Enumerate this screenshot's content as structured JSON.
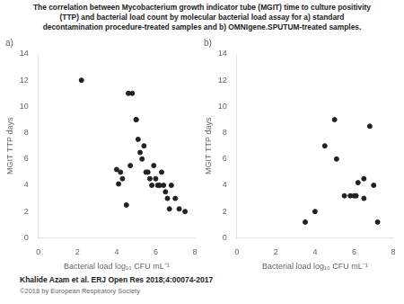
{
  "title": [
    "The correlation between Mycobacterium growth indicator tube (MGIT) time to culture positivity",
    "(TTP) and bacterial load count by molecular bacterial load assay for a) standard",
    "decontamination procedure-treated samples and b) OMNIgene.SPUTUM-treated samples."
  ],
  "annotations": [
    "Khalide Azam et al. ERJ Open Res 2018;4:00074-2017",
    "©2018 by European Respiratory Society"
  ],
  "chart_data": [
    {
      "type": "scatter",
      "title": "a)",
      "xlabel": "Bacterial load log₁₀ CFU mL⁻¹",
      "ylabel": "MGIT TTP days",
      "x": [
        2.2,
        4.0,
        4.1,
        4.2,
        4.3,
        4.5,
        4.6,
        4.7,
        4.8,
        5.0,
        5.0,
        5.1,
        5.2,
        5.3,
        5.4,
        5.5,
        5.6,
        5.7,
        5.8,
        5.9,
        6.0,
        6.1,
        6.2,
        6.3,
        6.4,
        6.5,
        6.6,
        6.7,
        6.8,
        7.0,
        7.2,
        7.5
      ],
      "values": [
        12.0,
        5.2,
        4.1,
        5.0,
        4.5,
        2.5,
        11.0,
        5.5,
        11.0,
        9.0,
        9.0,
        7.5,
        6.5,
        6.0,
        7.0,
        5.0,
        5.0,
        4.5,
        4.0,
        5.5,
        4.5,
        4.0,
        4.0,
        5.0,
        4.0,
        3.5,
        3.0,
        2.2,
        4.0,
        3.0,
        2.2,
        2.0
      ],
      "color": "#222222",
      "marker": "circle",
      "xlim": [
        0,
        8
      ],
      "ylim": [
        0,
        14
      ],
      "xticks": [
        0,
        2,
        4,
        6,
        8
      ],
      "yticks": [
        0,
        2,
        4,
        6,
        8,
        10,
        12,
        14
      ],
      "grid": false
    },
    {
      "type": "scatter",
      "title": "b)",
      "xlabel": "Bacterial load log₁₀ CFU mL⁻¹",
      "ylabel": "MGIT TTP days",
      "x": [
        3.5,
        4.0,
        4.5,
        5.0,
        5.1,
        5.5,
        5.8,
        6.0,
        6.1,
        6.2,
        6.5,
        6.5,
        6.8,
        7.0,
        7.2
      ],
      "values": [
        1.2,
        2.0,
        7.0,
        9.0,
        6.0,
        3.2,
        3.2,
        3.2,
        3.2,
        4.2,
        4.5,
        3.0,
        8.5,
        4.0,
        1.2
      ],
      "color": "#222222",
      "marker": "circle",
      "xlim": [
        0,
        8
      ],
      "ylim": [
        0,
        14
      ],
      "xticks": [
        0,
        2,
        4,
        6,
        8
      ],
      "yticks": [
        0,
        2,
        4,
        6,
        8,
        10,
        12,
        14
      ],
      "grid": false
    }
  ]
}
